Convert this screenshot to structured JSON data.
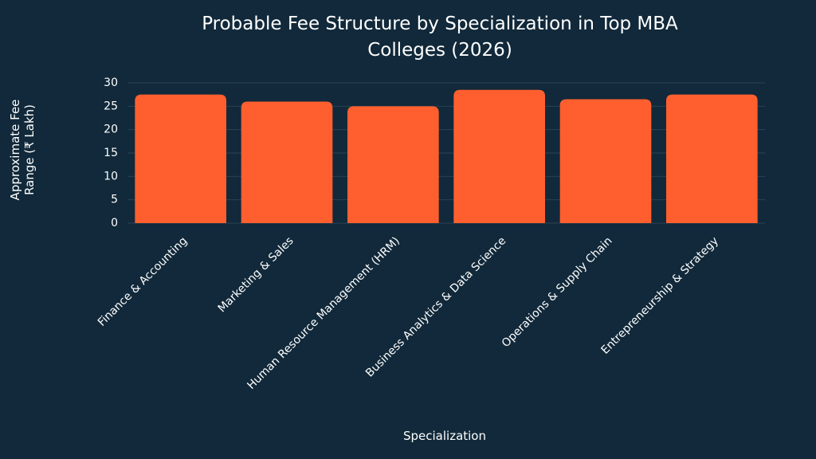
{
  "chart_data": {
    "type": "bar",
    "title": "Probable Fee Structure by Specialization in Top MBA Colleges (2026)",
    "x_label": "Specialization",
    "y_label": "Approximate Fee Range (₹ Lakh)",
    "categories": [
      "Finance & Accounting",
      "Marketing & Sales",
      "Human Resource Management (HRM)",
      "Business Analytics & Data Science",
      "Operations & Supply Chain",
      "Entrepreneurship & Strategy"
    ],
    "values": [
      27.5,
      26,
      25,
      28.5,
      26.5,
      27.5
    ],
    "color": "#ff5f2e",
    "ylim": [
      0,
      30
    ],
    "yticks": [
      0,
      5,
      10,
      15,
      20,
      25,
      30
    ],
    "grid": true
  }
}
